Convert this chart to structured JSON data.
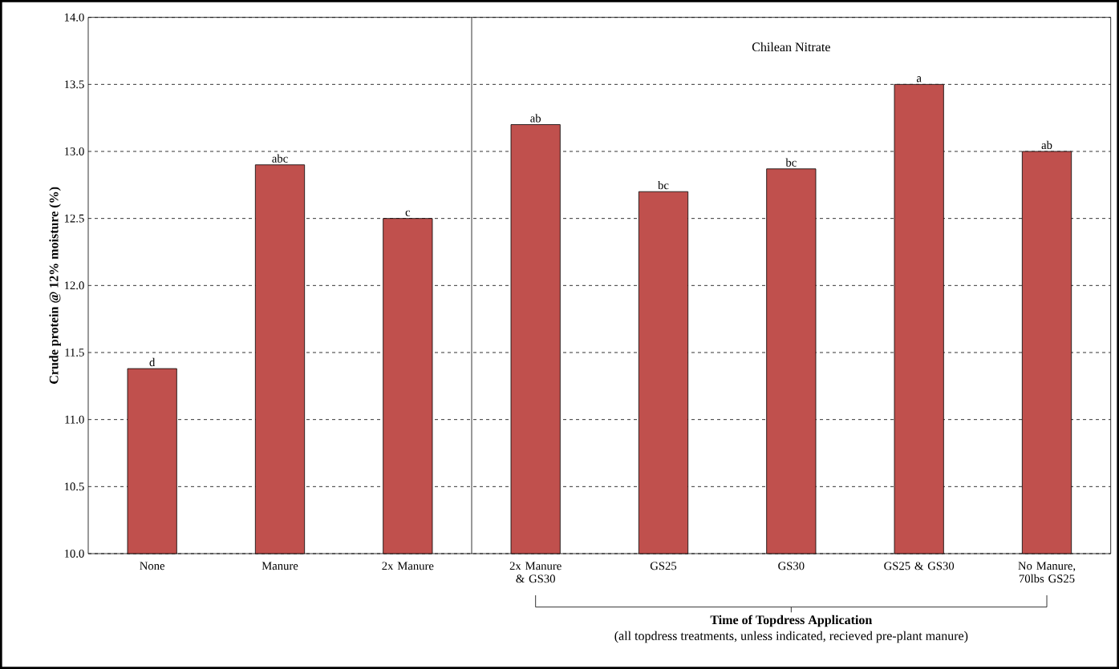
{
  "chart_data": {
    "type": "bar",
    "ylabel": "Crude protein @ 12% moisture (%)",
    "xlabel": "Time of Topdress Application",
    "categories": [
      "None",
      "Manure",
      "2x Manure",
      "2x Manure & GS30",
      "GS25",
      "GS30",
      "GS25 & GS30",
      "No Manure, 70lbs GS25"
    ],
    "values": [
      11.38,
      12.9,
      12.5,
      13.2,
      12.7,
      12.87,
      13.5,
      13.0
    ],
    "value_labels": [
      "d",
      "abc",
      "c",
      "ab",
      "bc",
      "bc",
      "a",
      "ab"
    ],
    "color": "#c0504d",
    "ylim": [
      10,
      14
    ],
    "yticks": [
      {
        "value": 10,
        "label": "10.0"
      },
      {
        "value": 10.5,
        "label": "10.5"
      },
      {
        "value": 11,
        "label": "11.0"
      },
      {
        "value": 11.5,
        "label": "11.5"
      },
      {
        "value": 12,
        "label": "12.0"
      },
      {
        "value": 12.5,
        "label": "12.5"
      },
      {
        "value": 13,
        "label": "13.0"
      },
      {
        "value": 13.5,
        "label": "13.5"
      },
      {
        "value": 14,
        "label": "14.0"
      }
    ],
    "grid": "y",
    "ref_lines": [
      {
        "axis": "x",
        "value": "2x Manure & GS30",
        "color": "#000000"
      }
    ],
    "annotations": [
      "Chilean Nitrate",
      "(all topdress treatments, unless indicated, recieved pre-plant manure)"
    ]
  }
}
